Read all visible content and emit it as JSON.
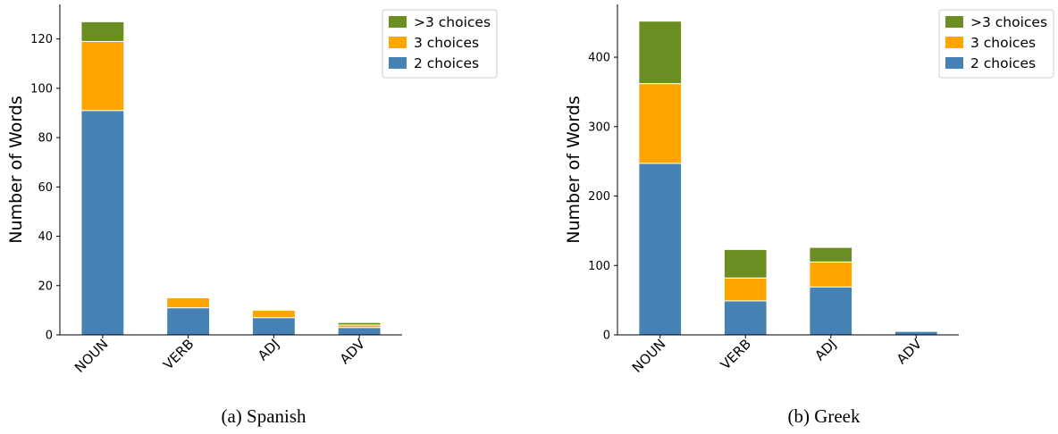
{
  "chart_data": [
    {
      "type": "bar",
      "stacked": true,
      "caption": "(a)  Spanish",
      "categories": [
        "NOUN",
        "VERB",
        "ADJ",
        "ADV"
      ],
      "series": [
        {
          "name": "2 choices",
          "color": "#4682b4",
          "values": [
            91,
            11,
            7,
            3
          ]
        },
        {
          "name": "3 choices",
          "color": "#ffa500",
          "values": [
            28,
            4,
            3,
            1
          ]
        },
        {
          "name": ">3 choices",
          "color": "#6b8e23",
          "values": [
            8,
            0,
            0,
            1
          ]
        }
      ],
      "ylabel": "Number of Words",
      "ylim": [
        0,
        134
      ],
      "yticks": [
        0,
        20,
        40,
        60,
        80,
        100,
        120
      ],
      "legend": {
        "position": "top-right",
        "entries": [
          ">3 choices",
          "3 choices",
          "2 choices"
        ]
      }
    },
    {
      "type": "bar",
      "stacked": true,
      "caption": "(b)  Greek",
      "categories": [
        "NOUN",
        "VERB",
        "ADJ",
        "ADV"
      ],
      "series": [
        {
          "name": "2 choices",
          "color": "#4682b4",
          "values": [
            247,
            49,
            69,
            5
          ]
        },
        {
          "name": "3 choices",
          "color": "#ffa500",
          "values": [
            115,
            33,
            36,
            0
          ]
        },
        {
          "name": ">3 choices",
          "color": "#6b8e23",
          "values": [
            90,
            41,
            21,
            0
          ]
        }
      ],
      "ylabel": "Number of Words",
      "ylim": [
        0,
        476
      ],
      "yticks": [
        0,
        100,
        200,
        300,
        400
      ],
      "legend": {
        "position": "top-right",
        "entries": [
          ">3 choices",
          "3 choices",
          "2 choices"
        ]
      }
    }
  ]
}
